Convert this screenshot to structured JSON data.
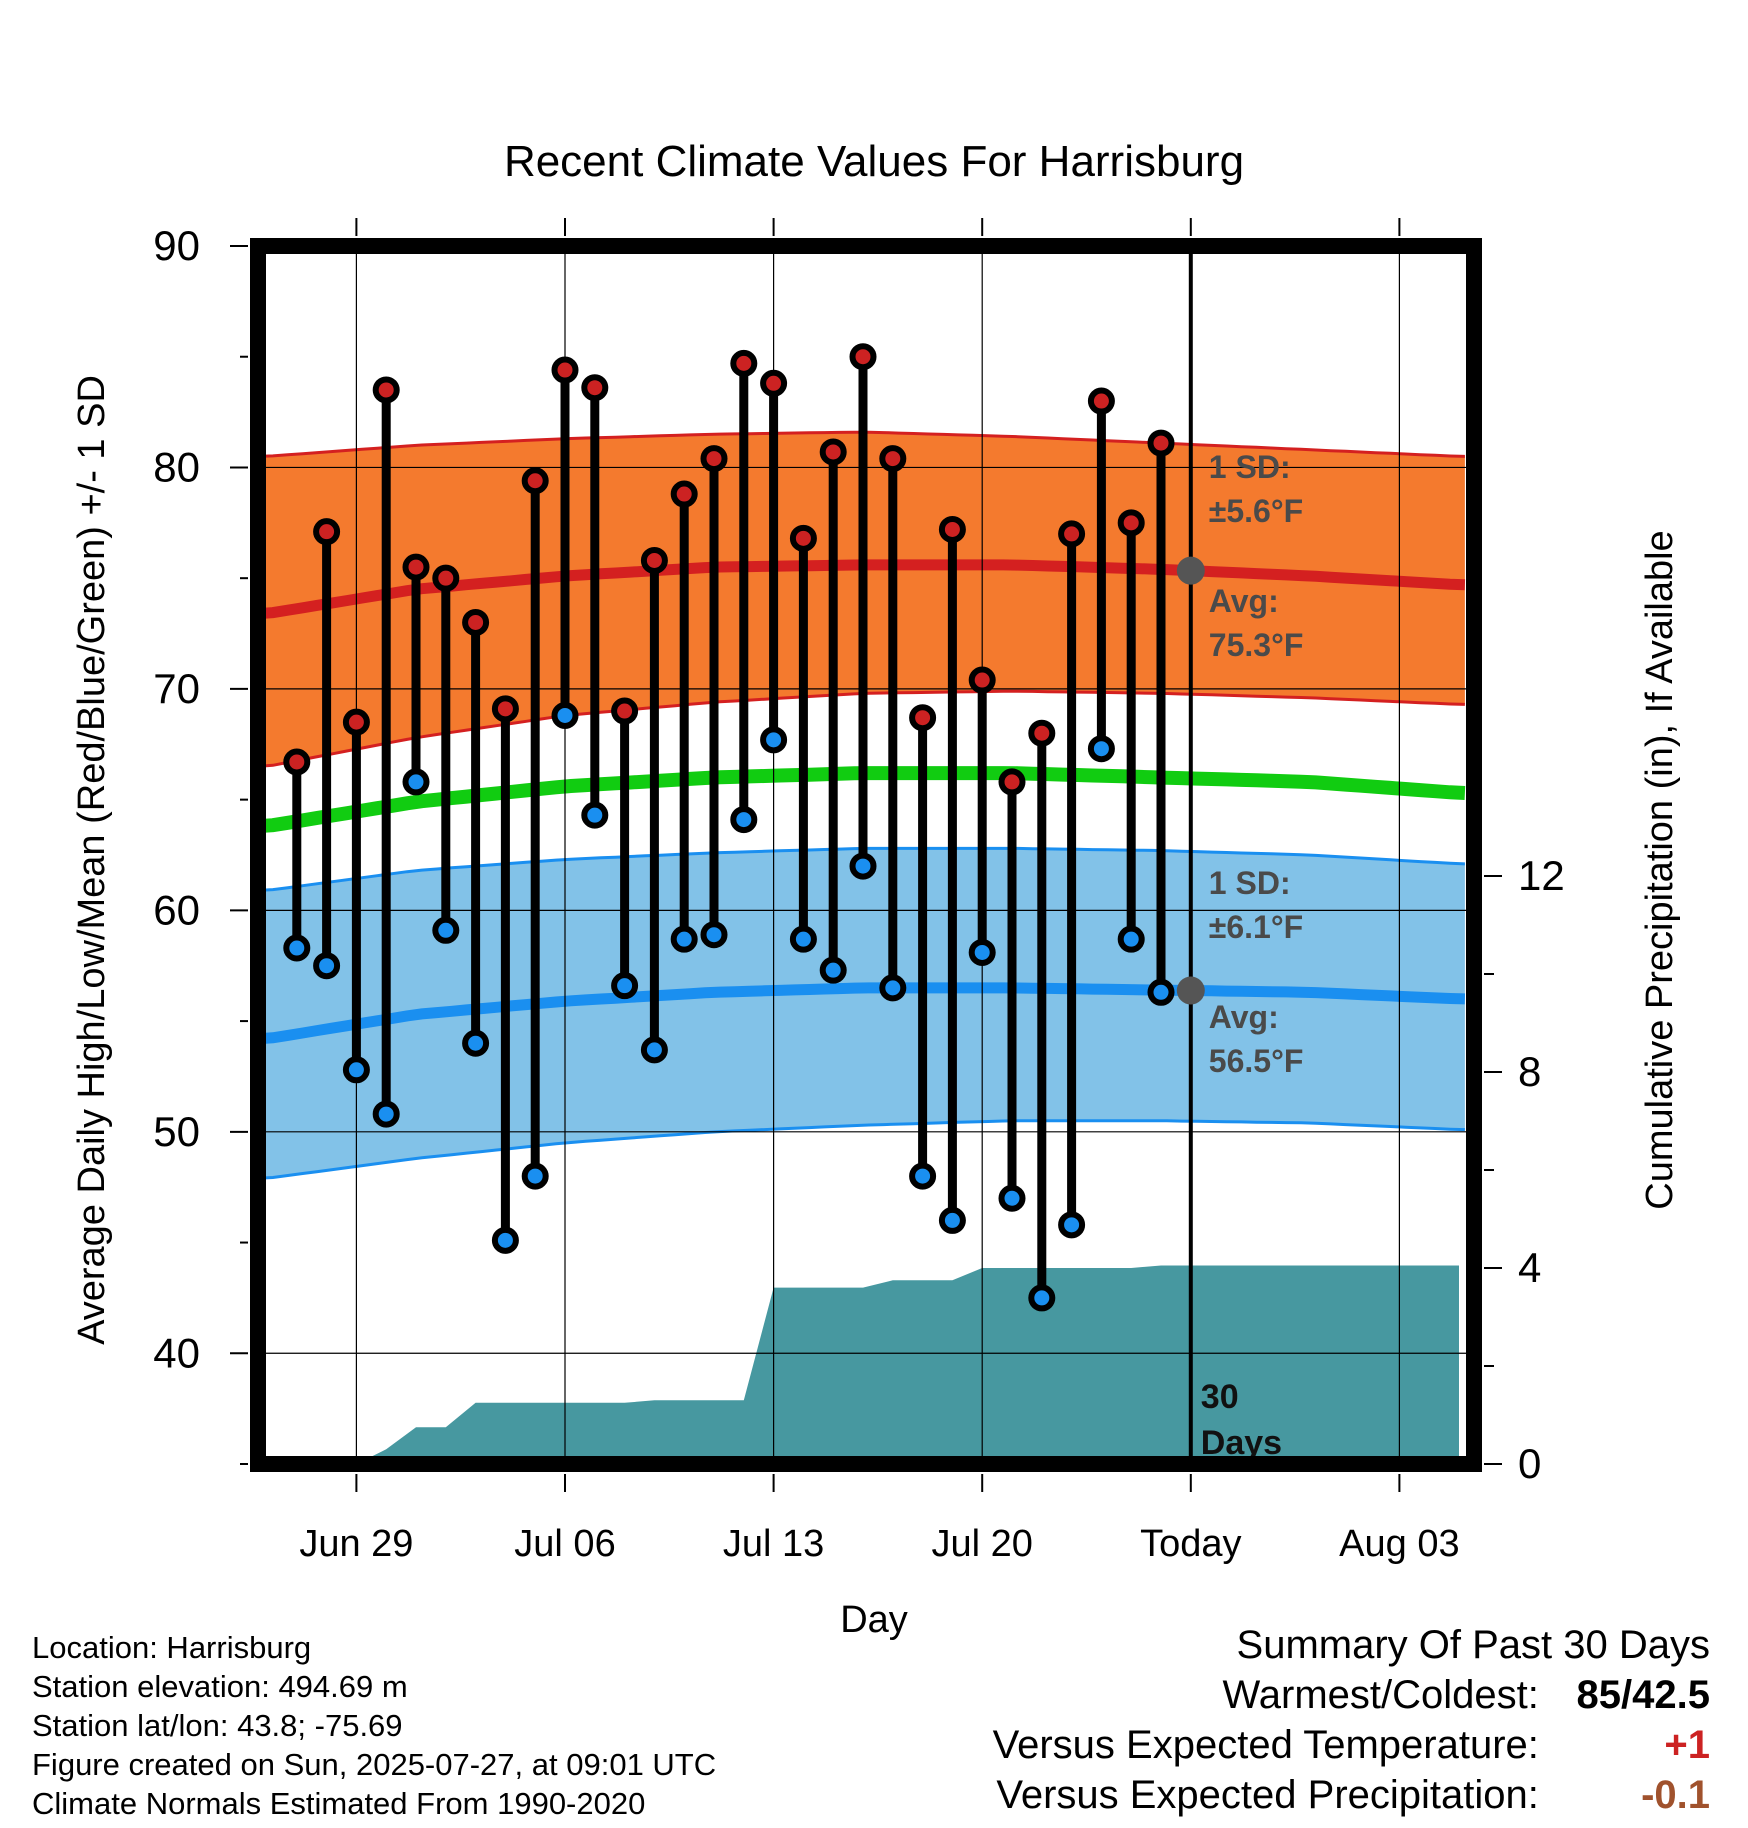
{
  "chart_data": {
    "type": "line",
    "title": "Recent Climate Values For Harrisburg",
    "xlabel": "Day",
    "ylabel": "Average Daily High/Low/Mean (Red/Blue/Green) +/- 1 SD",
    "y2label": "Cumulative Precipitation (in), If Available",
    "ylim": [
      35,
      90
    ],
    "y2lim": [
      0,
      16
    ],
    "yticks": [
      "90",
      "80",
      "70",
      "60",
      "50",
      "40"
    ],
    "y2ticks": [
      "12",
      "8",
      "4",
      "0"
    ],
    "x_tick_labels": [
      "Jun 29",
      "Jul 06",
      "Jul 13",
      "Jul 20",
      "Today",
      "Aug 03"
    ],
    "x_tick_days": [
      3,
      10,
      17,
      24,
      31,
      38
    ],
    "days": [
      1,
      2,
      3,
      4,
      5,
      6,
      7,
      8,
      9,
      10,
      11,
      12,
      13,
      14,
      15,
      16,
      17,
      18,
      19,
      20,
      21,
      22,
      23,
      24,
      25,
      26,
      27,
      28,
      29,
      30
    ],
    "highs": [
      66.7,
      77.1,
      68.5,
      83.5,
      75.5,
      75.0,
      73.0,
      69.1,
      79.4,
      84.4,
      83.6,
      69.0,
      75.8,
      78.8,
      80.4,
      84.7,
      83.8,
      76.8,
      80.7,
      85.0,
      80.4,
      68.7,
      77.2,
      70.4,
      65.8,
      68.0,
      77.0,
      83.0,
      77.5,
      81.1
    ],
    "lows": [
      58.3,
      57.5,
      52.8,
      50.8,
      65.8,
      59.1,
      54.0,
      45.1,
      48.0,
      68.8,
      64.3,
      56.6,
      53.7,
      58.7,
      58.9,
      64.1,
      67.7,
      58.7,
      57.3,
      62.0,
      56.5,
      48.0,
      46.0,
      58.1,
      47.0,
      42.5,
      45.8,
      67.3,
      58.7,
      56.3
    ],
    "normals": {
      "days": [
        0,
        5,
        10,
        15,
        20,
        25,
        30,
        35,
        40
      ],
      "high_avg": [
        73.4,
        74.5,
        75.1,
        75.5,
        75.6,
        75.6,
        75.4,
        75.1,
        74.7
      ],
      "high_upper": [
        80.5,
        81.0,
        81.3,
        81.5,
        81.6,
        81.4,
        81.1,
        80.8,
        80.5
      ],
      "high_lower": [
        66.5,
        67.8,
        68.8,
        69.4,
        69.8,
        69.9,
        69.8,
        69.6,
        69.3
      ],
      "mean_avg": [
        63.8,
        64.9,
        65.6,
        66.0,
        66.2,
        66.2,
        66.0,
        65.8,
        65.3
      ],
      "low_avg": [
        54.2,
        55.3,
        55.9,
        56.3,
        56.5,
        56.5,
        56.4,
        56.3,
        56.0
      ],
      "low_upper": [
        60.9,
        61.8,
        62.3,
        62.6,
        62.8,
        62.8,
        62.7,
        62.5,
        62.1
      ],
      "low_lower": [
        47.9,
        48.8,
        49.5,
        50.0,
        50.3,
        50.5,
        50.5,
        50.4,
        50.1
      ]
    },
    "precip_cumulative": {
      "days": [
        0,
        3,
        4,
        5,
        6,
        7,
        8,
        9,
        10,
        11,
        12,
        13,
        14,
        15,
        16,
        17,
        18,
        19,
        20,
        21,
        22,
        23,
        24,
        25,
        26,
        27,
        28,
        29,
        30,
        31,
        40
      ],
      "values": [
        0,
        0,
        0.3,
        0.75,
        0.75,
        1.25,
        1.25,
        1.25,
        1.25,
        1.25,
        1.25,
        1.3,
        1.3,
        1.3,
        1.3,
        3.6,
        3.6,
        3.6,
        3.6,
        3.75,
        3.75,
        3.75,
        4.0,
        4.0,
        4.0,
        4.0,
        4.0,
        4.0,
        4.05,
        4.05,
        4.05
      ]
    },
    "annotations": {
      "high_sd_label": "1 SD:",
      "high_sd_value": "±5.6°F",
      "high_avg_label": "Avg:",
      "high_avg_value": "75.3°F",
      "low_sd_label": "1 SD:",
      "low_sd_value": "±6.1°F",
      "low_avg_label": "Avg:",
      "low_avg_value": "56.5°F",
      "window_label_1": "30",
      "window_label_2": "Days"
    },
    "today_day": 31,
    "grid": true,
    "colors": {
      "high_band": "#f47a2e",
      "high_line": "#d42020",
      "high_point": "#cc2222",
      "low_band": "#82c2e8",
      "low_line": "#1a8ff0",
      "low_point": "#1a8ff0",
      "mean_line": "#11cc11",
      "precip": "#4798a0",
      "annotation": "#4a4a4a"
    }
  },
  "footer": {
    "location": "Location: Harrisburg",
    "elevation": "Station elevation: 494.69 m",
    "latlon": "Station lat/lon: 43.8; -75.69",
    "created": "Figure created on Sun, 2025-07-27, at 09:01 UTC",
    "normals": "Climate Normals Estimated From 1990-2020"
  },
  "summary": {
    "title": "Summary Of Past 30 Days",
    "warmest_label": "Warmest/Coldest:",
    "warmest_value": "85/42.5",
    "temp_label": "Versus Expected Temperature:",
    "temp_value": "+1",
    "temp_color": "#cc2222",
    "precip_label": "Versus Expected Precipitation:",
    "precip_value": "-0.1",
    "precip_color": "#a0522d"
  }
}
